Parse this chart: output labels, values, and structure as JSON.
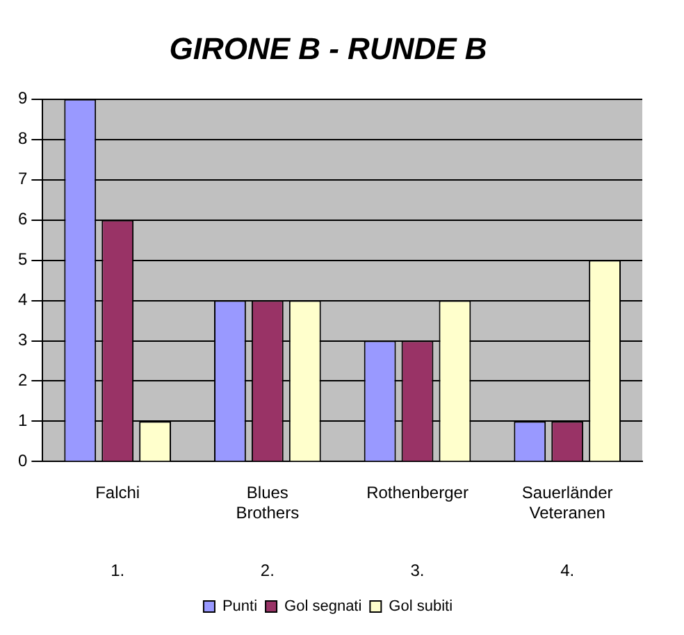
{
  "chart_data": {
    "type": "bar",
    "title": "GIRONE B - RUNDE B",
    "categories": [
      "Falchi",
      "Blues Brothers",
      "Rothenberger",
      "Sauerländer Veteranen"
    ],
    "series": [
      {
        "name": "Punti",
        "color": "#9999ff",
        "values": [
          9,
          4,
          3,
          1
        ]
      },
      {
        "name": "Gol segnati",
        "color": "#993366",
        "values": [
          6,
          4,
          3,
          1
        ]
      },
      {
        "name": "Gol subiti",
        "color": "#ffffcc",
        "values": [
          1,
          4,
          4,
          5
        ]
      }
    ],
    "annotations": [
      "1.",
      "2.",
      "3.",
      "4."
    ],
    "ylim": [
      0,
      9
    ],
    "yticks": [
      0,
      1,
      2,
      3,
      4,
      5,
      6,
      7,
      8,
      9
    ],
    "grid": "y",
    "legend": "bottom"
  }
}
